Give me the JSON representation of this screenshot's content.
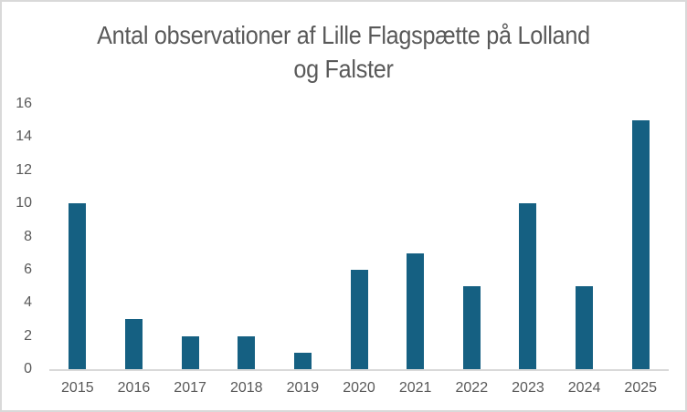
{
  "chart_data": {
    "type": "bar",
    "title": "Antal observationer af Lille Flagspætte på Lolland og Falster",
    "title_lines": [
      "Antal observationer af Lille Flagspætte på Lolland",
      "og Falster"
    ],
    "categories": [
      "2015",
      "2016",
      "2017",
      "2018",
      "2019",
      "2020",
      "2021",
      "2022",
      "2023",
      "2024",
      "2025"
    ],
    "values": [
      10,
      3,
      2,
      2,
      1,
      6,
      7,
      5,
      10,
      5,
      15
    ],
    "xlabel": "",
    "ylabel": "",
    "ylim": [
      0,
      16
    ],
    "yticks": [
      0,
      2,
      4,
      6,
      8,
      10,
      12,
      14,
      16
    ],
    "grid": false,
    "legend": false,
    "legend_position": "none",
    "colors": {
      "bar": "#156082",
      "text": "#595959",
      "axis_line": "#d9d9d9",
      "chart_border": "#d9d9d9",
      "background": "#ffffff"
    }
  }
}
